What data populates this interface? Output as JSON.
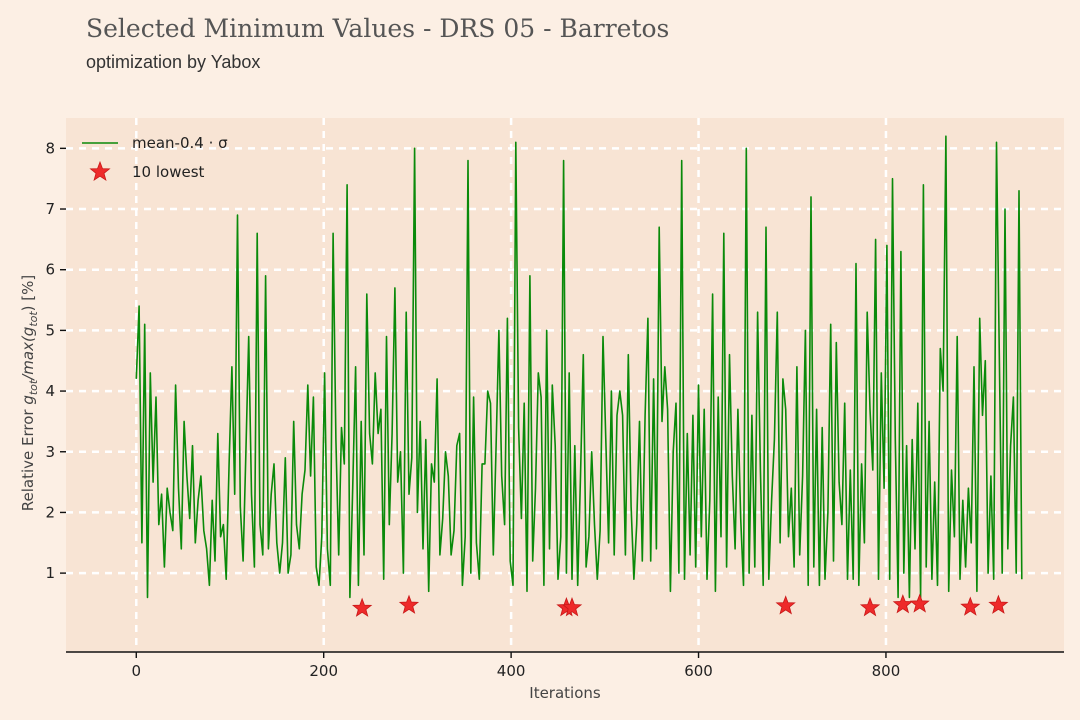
{
  "title": "Selected Minimum Values - DRS 05 - Barretos",
  "subtitle": "optimization by Yabox",
  "colors": {
    "background": "#fcefe4",
    "plot_background": "#f8e4d4",
    "line": "#0a8a0a",
    "marker": "#ee2a2a",
    "grid": "#ffffff"
  },
  "chart_data": {
    "type": "line",
    "title": "",
    "xlabel": "Iterations",
    "ylabel": "Relative Error g_tot/max(g_tot) [%]",
    "xlim": [
      -75,
      990
    ],
    "ylim": [
      -0.3,
      8.5
    ],
    "x_ticks": [
      "0",
      "200",
      "400",
      "600",
      "800"
    ],
    "x_tick_values": [
      0,
      200,
      400,
      600,
      800
    ],
    "y_ticks": [
      "1",
      "2",
      "3",
      "4",
      "5",
      "6",
      "7",
      "8"
    ],
    "y_tick_values": [
      1,
      2,
      3,
      4,
      5,
      6,
      7,
      8
    ],
    "grid": true,
    "legend_position": "top-left",
    "series": [
      {
        "name": "mean-0.4 · σ",
        "style": "line",
        "x_range": [
          0,
          945
        ],
        "x_step": 3,
        "values": [
          4.2,
          5.4,
          1.5,
          5.1,
          0.6,
          4.3,
          2.5,
          3.9,
          1.8,
          2.3,
          1.1,
          2.4,
          2.0,
          1.7,
          4.1,
          2.4,
          1.4,
          3.5,
          2.6,
          1.9,
          3.1,
          1.5,
          2.2,
          2.6,
          1.7,
          1.4,
          0.8,
          2.2,
          1.2,
          3.3,
          1.6,
          1.8,
          0.9,
          2.8,
          4.4,
          2.3,
          6.9,
          2.1,
          1.2,
          3.0,
          4.9,
          2.3,
          1.1,
          6.6,
          1.8,
          1.3,
          5.9,
          1.4,
          2.3,
          2.8,
          1.5,
          1.0,
          1.5,
          2.9,
          1.0,
          1.3,
          3.5,
          1.8,
          1.4,
          2.3,
          2.7,
          4.1,
          2.6,
          3.9,
          1.1,
          0.8,
          1.6,
          4.3,
          1.4,
          0.8,
          6.6,
          3.2,
          1.3,
          3.4,
          2.8,
          7.4,
          0.6,
          2.4,
          4.4,
          0.8,
          3.5,
          1.3,
          5.6,
          3.3,
          2.8,
          4.3,
          3.3,
          3.7,
          0.9,
          4.9,
          1.8,
          3.3,
          5.7,
          2.5,
          3.0,
          1.0,
          5.3,
          2.3,
          2.9,
          8.0,
          2.0,
          3.5,
          1.4,
          3.2,
          0.7,
          2.8,
          2.5,
          4.2,
          1.3,
          1.9,
          3.0,
          2.6,
          1.3,
          1.7,
          3.1,
          3.3,
          0.8,
          1.6,
          7.8,
          1.0,
          3.9,
          1.5,
          0.9,
          2.8,
          2.8,
          4.0,
          3.8,
          1.3,
          3.1,
          5.0,
          2.6,
          1.8,
          5.2,
          1.2,
          0.8,
          8.1,
          3.4,
          1.9,
          3.8,
          0.7,
          5.9,
          1.2,
          2.4,
          4.3,
          3.9,
          0.8,
          5.0,
          1.4,
          4.1,
          3.1,
          0.9,
          1.6,
          7.8,
          1.0,
          4.3,
          0.9,
          3.1,
          0.8,
          2.6,
          4.6,
          1.1,
          1.6,
          3.0,
          1.8,
          0.9,
          1.7,
          4.9,
          3.2,
          1.5,
          4.0,
          1.3,
          3.6,
          4.0,
          3.6,
          1.3,
          4.6,
          2.1,
          0.9,
          1.8,
          3.5,
          1.2,
          3.6,
          5.2,
          1.2,
          4.2,
          1.4,
          6.7,
          3.5,
          4.4,
          3.7,
          0.7,
          3.0,
          3.8,
          1.0,
          7.8,
          0.9,
          3.3,
          1.3,
          3.6,
          1.1,
          4.1,
          1.6,
          3.7,
          0.9,
          2.2,
          5.6,
          0.7,
          3.9,
          1.6,
          6.6,
          1.1,
          4.6,
          2.6,
          1.4,
          3.7,
          1.9,
          0.8,
          8.0,
          1.0,
          3.6,
          1.1,
          5.3,
          2.7,
          0.8,
          6.7,
          0.9,
          2.2,
          3.2,
          5.3,
          1.5,
          4.2,
          3.7,
          1.6,
          2.4,
          1.1,
          4.4,
          1.3,
          2.6,
          5.0,
          0.8,
          7.2,
          1.1,
          3.7,
          0.8,
          3.4,
          0.9,
          2.0,
          5.1,
          1.2,
          4.8,
          2.5,
          1.8,
          3.8,
          0.9,
          2.7,
          0.9,
          6.1,
          0.8,
          2.8,
          1.5,
          5.3,
          3.7,
          2.7,
          6.5,
          0.9,
          4.3,
          2.4,
          6.4,
          0.9,
          7.5,
          3.2,
          0.6,
          6.3,
          1.0,
          3.1,
          0.6,
          3.2,
          1.4,
          3.8,
          0.6,
          7.4,
          1.1,
          3.5,
          0.9,
          2.5,
          0.8,
          4.7,
          4.0,
          8.2,
          0.7,
          2.7,
          1.6,
          4.9,
          0.9,
          2.2,
          1.1,
          2.4,
          1.5,
          4.4,
          0.7,
          5.2,
          3.6,
          4.5,
          1.0,
          2.6,
          0.9,
          8.1,
          4.6,
          1.0,
          7.0,
          1.4,
          3.1,
          3.9,
          1.0,
          7.3,
          0.9
        ]
      },
      {
        "name": "10 lowest",
        "style": "markers",
        "points": [
          {
            "x": 241,
            "y": 0.42
          },
          {
            "x": 291,
            "y": 0.47
          },
          {
            "x": 459,
            "y": 0.43
          },
          {
            "x": 465,
            "y": 0.43
          },
          {
            "x": 693,
            "y": 0.46
          },
          {
            "x": 783,
            "y": 0.43
          },
          {
            "x": 818,
            "y": 0.48
          },
          {
            "x": 836,
            "y": 0.49
          },
          {
            "x": 890,
            "y": 0.44
          },
          {
            "x": 920,
            "y": 0.47
          }
        ]
      }
    ]
  }
}
